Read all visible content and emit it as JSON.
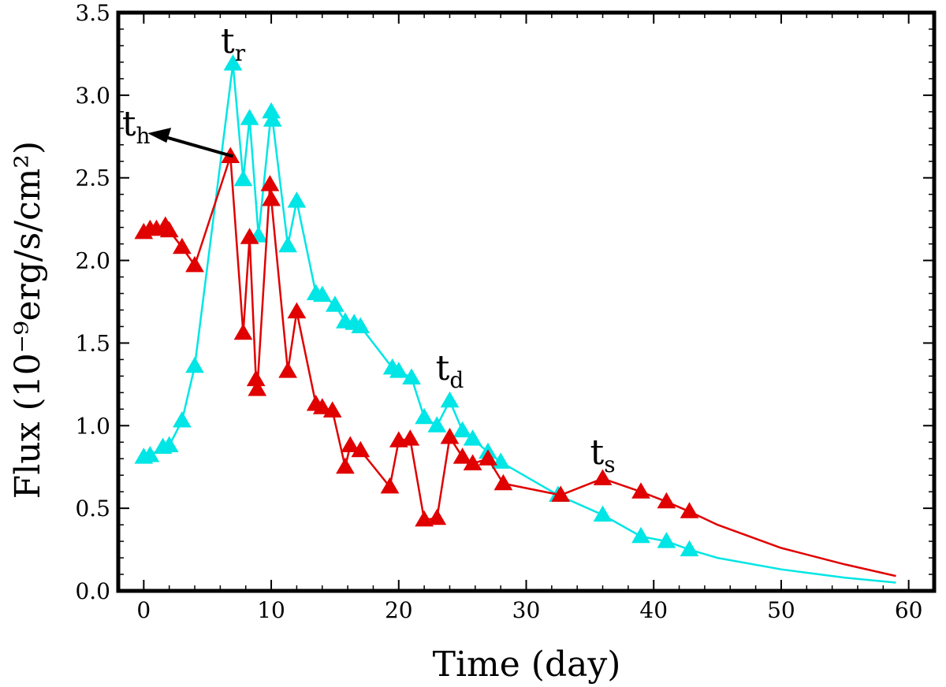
{
  "chart_data": {
    "type": "line",
    "title": "",
    "xlabel": "Time (day)",
    "ylabel": "Flux (10⁻⁹erg/s/cm²)",
    "xlim": [
      -2,
      62
    ],
    "ylim": [
      0.0,
      3.5
    ],
    "x_ticks": [
      0,
      10,
      20,
      30,
      40,
      50,
      60
    ],
    "y_ticks": [
      0.0,
      0.5,
      1.0,
      1.5,
      2.0,
      2.5,
      3.0,
      3.5
    ],
    "x_tick_labels": [
      "0",
      "10",
      "20",
      "30",
      "40",
      "50",
      "60"
    ],
    "y_tick_labels": [
      "0.0",
      "0.5",
      "1.0",
      "1.5",
      "2.0",
      "2.5",
      "3.0",
      "3.5"
    ],
    "grid": false,
    "legend": "none",
    "series": [
      {
        "name": "cyan",
        "color": "#00e5e5",
        "marker": "triangle",
        "points": [
          [
            0.0,
            0.81
          ],
          [
            0.5,
            0.82
          ],
          [
            1.5,
            0.87
          ],
          [
            2.0,
            0.88
          ],
          [
            3.0,
            1.03
          ],
          [
            4.0,
            1.36
          ],
          [
            7.0,
            3.19
          ],
          [
            7.8,
            2.49
          ],
          [
            8.3,
            2.86
          ],
          [
            9.0,
            2.15
          ],
          [
            10.0,
            2.9
          ],
          [
            10.1,
            2.85
          ],
          [
            11.3,
            2.09
          ],
          [
            12.0,
            2.36
          ],
          [
            13.5,
            1.8
          ],
          [
            14.0,
            1.79
          ],
          [
            15.0,
            1.73
          ],
          [
            15.8,
            1.63
          ],
          [
            16.5,
            1.62
          ],
          [
            17.0,
            1.6
          ],
          [
            19.5,
            1.35
          ],
          [
            20.0,
            1.33
          ],
          [
            21.0,
            1.29
          ],
          [
            22.0,
            1.05
          ],
          [
            23.0,
            1.0
          ],
          [
            24.0,
            1.15
          ],
          [
            25.0,
            0.97
          ],
          [
            25.8,
            0.92
          ],
          [
            27.0,
            0.84
          ],
          [
            28.0,
            0.78
          ],
          [
            32.5,
            0.58
          ],
          [
            36.0,
            0.46
          ],
          [
            39.0,
            0.33
          ],
          [
            41.0,
            0.3
          ],
          [
            42.8,
            0.25
          ]
        ],
        "tail": [
          [
            45,
            0.2
          ],
          [
            50,
            0.13
          ],
          [
            55,
            0.08
          ],
          [
            59,
            0.05
          ]
        ]
      },
      {
        "name": "red",
        "color": "#e00000",
        "marker": "triangle",
        "points": [
          [
            0.0,
            2.17
          ],
          [
            0.5,
            2.19
          ],
          [
            1.0,
            2.19
          ],
          [
            1.7,
            2.21
          ],
          [
            2.0,
            2.18
          ],
          [
            3.0,
            2.08
          ],
          [
            4.0,
            1.97
          ],
          [
            6.8,
            2.63
          ],
          [
            7.8,
            1.56
          ],
          [
            8.3,
            2.14
          ],
          [
            8.8,
            1.28
          ],
          [
            8.9,
            1.22
          ],
          [
            9.9,
            2.46
          ],
          [
            10.0,
            2.37
          ],
          [
            11.3,
            1.33
          ],
          [
            12.0,
            1.69
          ],
          [
            13.5,
            1.13
          ],
          [
            14.0,
            1.11
          ],
          [
            14.8,
            1.09
          ],
          [
            15.8,
            0.75
          ],
          [
            16.2,
            0.88
          ],
          [
            17.0,
            0.85
          ],
          [
            19.3,
            0.63
          ],
          [
            20.0,
            0.91
          ],
          [
            20.9,
            0.92
          ],
          [
            22.0,
            0.43
          ],
          [
            23.0,
            0.44
          ],
          [
            24.0,
            0.93
          ],
          [
            25.0,
            0.81
          ],
          [
            25.8,
            0.77
          ],
          [
            27.0,
            0.8
          ],
          [
            28.2,
            0.65
          ],
          [
            32.7,
            0.58
          ],
          [
            36.0,
            0.68
          ],
          [
            39.0,
            0.6
          ],
          [
            41.0,
            0.54
          ],
          [
            42.8,
            0.48
          ]
        ],
        "tail": [
          [
            45,
            0.4
          ],
          [
            50,
            0.26
          ],
          [
            55,
            0.16
          ],
          [
            59,
            0.09
          ]
        ]
      }
    ],
    "annotations": [
      {
        "id": "tr",
        "main": "t",
        "sub": "r",
        "x": 7.0,
        "y": 3.2
      },
      {
        "id": "th",
        "main": "t",
        "sub": "h",
        "x": -1.7,
        "y": 2.7
      },
      {
        "id": "td",
        "main": "t",
        "sub": "d",
        "x": 24.0,
        "y": 1.22
      },
      {
        "id": "ts",
        "main": "t",
        "sub": "s",
        "x": 36.0,
        "y": 0.71
      }
    ],
    "arrow": {
      "from": [
        7.0,
        2.63
      ],
      "to": [
        0.3,
        2.77
      ],
      "label": "th"
    }
  }
}
